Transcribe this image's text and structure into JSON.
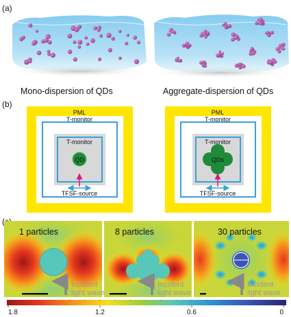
{
  "panel_a": {
    "label": "(a)",
    "captions": [
      "Mono-dispersion of QDs",
      "Aggregate-dispersion of QDs"
    ]
  },
  "panel_b": {
    "label": "(b)",
    "pml_label": "PML",
    "outer_monitor_label": "T-monitor",
    "inner_monitor_label": "T-monitor",
    "source_label": "TFSF-source",
    "qd_label": "QD",
    "qds_label": "QDs",
    "colors": {
      "pml": "#ffe600",
      "monitor": "#3aa0d8",
      "region": "#d8d8d8",
      "qd": "#1f8a3a",
      "arrow_k": "#e0157a"
    }
  },
  "panel_c": {
    "label": "(c)",
    "maps": [
      {
        "title": "1 particles",
        "annotation": [
          "Incident",
          "light wave"
        ]
      },
      {
        "title": "8 particles",
        "annotation": [
          "Incident",
          "light wave"
        ]
      },
      {
        "title": "30 particles",
        "annotation": [
          "Incident",
          "light wave"
        ]
      }
    ],
    "colorbar": {
      "tick_labels": [
        "1.8",
        "1.2",
        "0.6",
        "0"
      ],
      "tick_values": [
        1.8,
        1.2,
        0.6,
        0
      ],
      "range": [
        1.8,
        0
      ],
      "colors": [
        "#a01418",
        "#e53a1e",
        "#f7951c",
        "#f4e01a",
        "#9ccf3a",
        "#56c7b8",
        "#2f95d6",
        "#3a55b4",
        "#2a2470"
      ]
    }
  }
}
